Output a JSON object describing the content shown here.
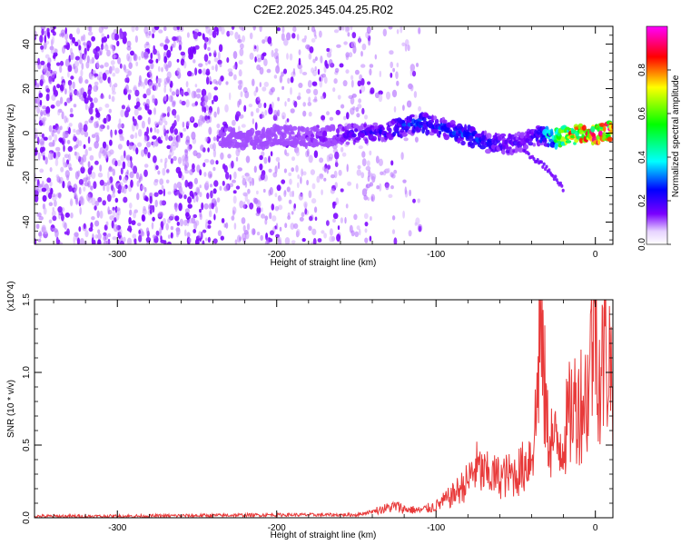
{
  "figure_title": "C2E2.2025.345.04.25.R02",
  "chart_data": [
    {
      "type": "heatmap",
      "title": "C2E2.2025.345.04.25.R02",
      "xlabel": "Height of straight line (km)",
      "ylabel": "Frequency (Hz)",
      "xlim": [
        -352,
        11
      ],
      "ylim": [
        -50,
        48
      ],
      "xticks": [
        -300,
        -200,
        -100,
        0
      ],
      "yticks": [
        -40,
        -20,
        0,
        20,
        40
      ],
      "x_tick_labels": [
        "-300",
        "-200",
        "-100",
        "0"
      ],
      "y_tick_labels": [
        "-40",
        "-20",
        "0",
        "20",
        "40"
      ],
      "colorbar": {
        "label": "Normalized spectral amplitude",
        "range": [
          0,
          1
        ],
        "ticks": [
          0.0,
          0.2,
          0.4,
          0.6,
          0.8
        ],
        "tick_labels": [
          "0.0",
          "0.2",
          "0.4",
          "0.6",
          "0.8"
        ],
        "colormap": [
          "#ffffff",
          "#7a00ff",
          "#0000ff",
          "#00ffff",
          "#00ff00",
          "#ffff00",
          "#ff0000",
          "#ff00ff"
        ]
      },
      "signal_track": {
        "x": [
          -235,
          -210,
          -200,
          -180,
          -160,
          -140,
          -125,
          -110,
          -100,
          -85,
          -70,
          -55,
          -45,
          -35,
          -25,
          -15,
          -5,
          5,
          10
        ],
        "freq": [
          -2,
          -3,
          -1,
          -2,
          -1,
          0,
          2,
          5,
          3,
          0,
          -4,
          -5,
          -4,
          -1,
          -2,
          -1,
          -1,
          0,
          1
        ],
        "amplitude": [
          0.05,
          0.08,
          0.1,
          0.15,
          0.2,
          0.25,
          0.3,
          0.35,
          0.3,
          0.35,
          0.3,
          0.25,
          0.2,
          0.3,
          0.6,
          0.8,
          0.9,
          0.95,
          0.9
        ]
      },
      "branch": {
        "x": [
          -45,
          -30,
          -20
        ],
        "freq": [
          -8,
          -16,
          -25
        ]
      },
      "noise_extent_x": [
        -352,
        -110
      ]
    },
    {
      "type": "line",
      "xlabel": "Height of straight line (km)",
      "ylabel": "SNR (10 * v/v)",
      "y_multiplier": "(x10^4)",
      "xlim": [
        -352,
        11
      ],
      "ylim": [
        0,
        1.5
      ],
      "xticks": [
        -300,
        -200,
        -100,
        0
      ],
      "yticks": [
        0.0,
        0.5,
        1.0,
        1.5
      ],
      "x_tick_labels": [
        "-300",
        "-200",
        "-100",
        "0"
      ],
      "y_tick_labels": [
        "0.0",
        "0.5",
        "1.0",
        "1.5"
      ],
      "line_color": "#e83a3a",
      "series": [
        {
          "name": "SNR",
          "x": [
            -352,
            -300,
            -250,
            -200,
            -150,
            -125,
            -120,
            -110,
            -100,
            -90,
            -80,
            -75,
            -70,
            -60,
            -50,
            -45,
            -40,
            -37,
            -35,
            -30,
            -25,
            -20,
            -15,
            -10,
            -5,
            -3,
            0,
            3,
            6,
            11
          ],
          "y": [
            0.01,
            0.01,
            0.015,
            0.02,
            0.02,
            0.08,
            0.06,
            0.05,
            0.08,
            0.15,
            0.25,
            0.35,
            0.3,
            0.28,
            0.3,
            0.35,
            0.45,
            0.7,
            1.35,
            0.6,
            0.5,
            0.55,
            0.75,
            0.8,
            0.85,
            1.1,
            1.52,
            0.9,
            1.2,
            1.0
          ]
        }
      ]
    }
  ]
}
